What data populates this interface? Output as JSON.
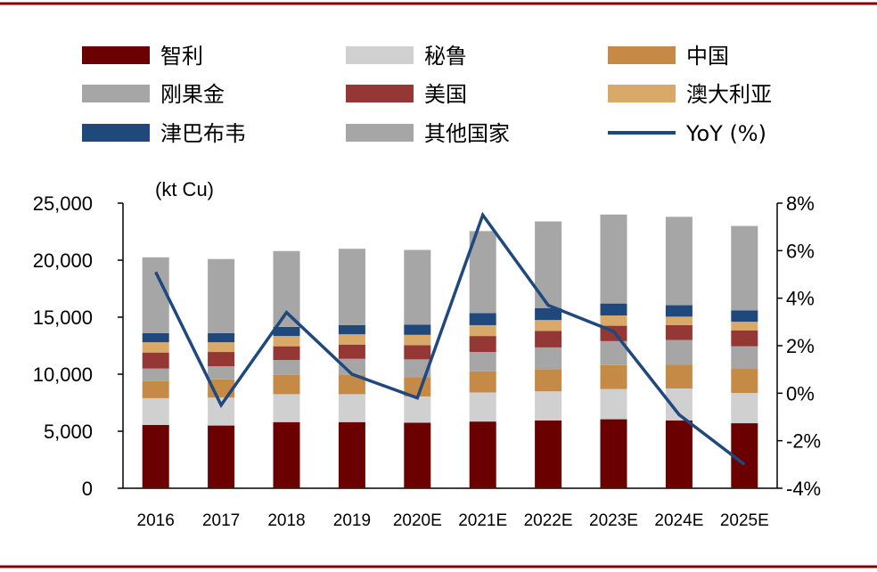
{
  "chart_data": {
    "type": "bar",
    "stacked": true,
    "unit_label": "(kt Cu)",
    "categories": [
      "2016",
      "2017",
      "2018",
      "2019",
      "2020E",
      "2021E",
      "2022E",
      "2023E",
      "2024E",
      "2025E"
    ],
    "series": [
      {
        "name": "智利",
        "color": "#6B0000",
        "values": [
          5550,
          5500,
          5800,
          5800,
          5750,
          5850,
          5950,
          6050,
          5950,
          5700
        ]
      },
      {
        "name": "秘鲁",
        "color": "#D0D0D0",
        "values": [
          2350,
          2450,
          2450,
          2450,
          2300,
          2550,
          2550,
          2650,
          2800,
          2650
        ]
      },
      {
        "name": "中国",
        "color": "#C48A46",
        "values": [
          1500,
          1600,
          1700,
          1700,
          1700,
          1850,
          1950,
          2100,
          2100,
          2150
        ]
      },
      {
        "name": "刚果金",
        "color": "#A6A6A6",
        "values": [
          1100,
          1150,
          1300,
          1400,
          1550,
          1700,
          1900,
          2100,
          2150,
          1950
        ]
      },
      {
        "name": "美国",
        "color": "#953735",
        "values": [
          1400,
          1250,
          1200,
          1250,
          1250,
          1400,
          1450,
          1350,
          1300,
          1400
        ]
      },
      {
        "name": "澳大利亚",
        "color": "#D9A96A",
        "values": [
          900,
          850,
          900,
          900,
          900,
          950,
          950,
          900,
          750,
          750
        ]
      },
      {
        "name": "津巴布韦",
        "color": "#1F497D",
        "values": [
          800,
          800,
          800,
          800,
          900,
          1050,
          1050,
          1050,
          1000,
          1000
        ]
      },
      {
        "name": "其他国家",
        "color": "#A6A6A6",
        "values": [
          6650,
          6500,
          6650,
          6700,
          6550,
          7200,
          7600,
          7800,
          7750,
          7400
        ]
      }
    ],
    "line_series": {
      "name": "YoY (%)",
      "color": "#1F497D",
      "values": [
        5.1,
        -0.5,
        3.4,
        0.8,
        -0.2,
        7.5,
        3.7,
        2.6,
        -0.9,
        -3.0
      ]
    },
    "ylim_left": [
      0,
      25000
    ],
    "yticks_left": [
      "0",
      "5,000",
      "10,000",
      "15,000",
      "20,000",
      "25,000"
    ],
    "ylim_right": [
      -4,
      8
    ],
    "yticks_right": [
      "-4%",
      "-2%",
      "0%",
      "2%",
      "4%",
      "6%",
      "8%"
    ],
    "grid": false,
    "legend_position": "top"
  },
  "colors": {
    "frame": "#8B0000",
    "axis": "#000000"
  }
}
